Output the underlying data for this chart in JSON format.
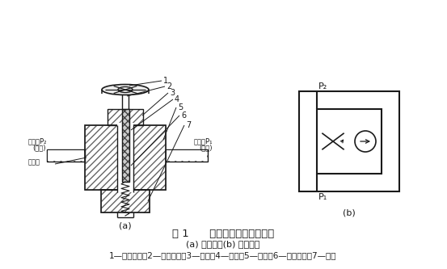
{
  "title": "图 1      滑阀压差式单向节流阀",
  "subtitle": "(a) 结构图；(b) 图形符号",
  "caption": "1—调节手轮；2—调节螺钉；3—螺盖；4—阀芯；5—阀体；6—复位弹簧；7—端盖",
  "label_a": "(a)",
  "label_b": "(b)",
  "bg_color": "#ffffff",
  "line_color": "#1a1a1a",
  "hatch_color": "#555555",
  "text_color": "#1a1a1a",
  "font_size_title": 9.5,
  "font_size_caption": 7.5,
  "font_size_label": 7.0
}
